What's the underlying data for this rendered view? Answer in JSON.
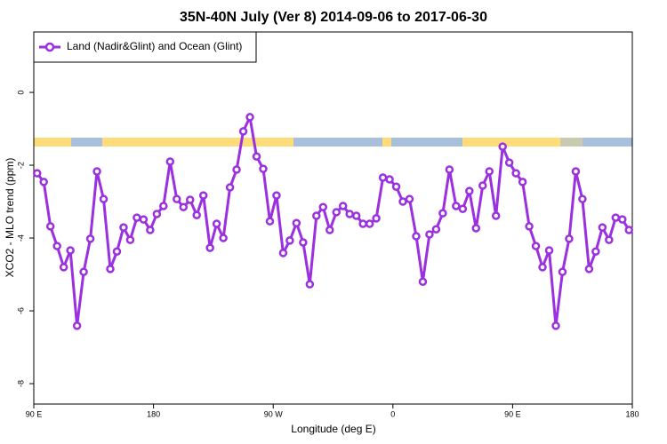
{
  "chart_data": {
    "type": "line",
    "title": "35N-40N July (Ver 8)   2014-09-06 to 2017-06-30",
    "xlabel": "Longitude (deg E)",
    "ylabel": "XCO2 - MLO trend (ppm)",
    "x": [
      92.5,
      97.5,
      102.5,
      107.5,
      112.5,
      117.5,
      122.5,
      127.5,
      132.5,
      137.5,
      142.5,
      147.5,
      152.5,
      157.5,
      162.5,
      167.5,
      172.5,
      177.5,
      182.5,
      187.5,
      192.5,
      197.5,
      202.5,
      207.5,
      212.5,
      217.5,
      222.5,
      227.5,
      232.5,
      237.5,
      242.5,
      247.5,
      252.5,
      257.5,
      262.5,
      267.5,
      272.5,
      277.5,
      282.5,
      287.5,
      292.5,
      297.5,
      302.5,
      307.5,
      312.5,
      317.5,
      322.5,
      327.5,
      332.5,
      337.5,
      342.5,
      347.5,
      352.5,
      357.5,
      362.5,
      367.5,
      372.5,
      377.5,
      382.5,
      387.5,
      392.5,
      397.5,
      402.5,
      407.5,
      412.5,
      417.5,
      422.5,
      427.5,
      432.5,
      437.5,
      442.5,
      447.5,
      452.5,
      457.5,
      462.5,
      467.5,
      472.5,
      477.5,
      482.5,
      487.5,
      492.5,
      497.5,
      502.5,
      507.5,
      512.5,
      517.5,
      522.5,
      527.5,
      532.5,
      537.5
    ],
    "series": [
      {
        "name": "Land (Nadir&Glint) and Ocean (Glint)",
        "color": "#9b30e0",
        "values": [
          -2.22,
          -2.46,
          -3.68,
          -4.22,
          -4.8,
          -4.34,
          -6.41,
          -4.93,
          -4.02,
          -2.17,
          -2.93,
          -4.85,
          -4.37,
          -3.71,
          -4.05,
          -3.44,
          -3.49,
          -3.78,
          -3.34,
          -3.12,
          -1.9,
          -2.93,
          -3.15,
          -2.95,
          -3.37,
          -2.83,
          -4.27,
          -3.61,
          -4.0,
          -2.61,
          -2.12,
          -1.07,
          -0.68,
          -1.76,
          -2.1,
          -3.54,
          -2.83,
          -4.41,
          -4.07,
          -3.59,
          -4.12,
          -5.27,
          -3.39,
          -3.15,
          -3.78,
          -3.29,
          -3.12,
          -3.34,
          -3.39,
          -3.61,
          -3.61,
          -3.46,
          -2.34,
          -2.39,
          -2.59,
          -3.0,
          -2.93,
          -3.95,
          -5.2,
          -3.9,
          -3.76,
          -3.32,
          -2.12,
          -3.12,
          -3.2,
          -2.71,
          -3.73,
          -2.56,
          -2.17,
          -3.39,
          -1.49,
          -1.93,
          -2.22,
          -2.46,
          -3.68,
          -4.22,
          -4.8,
          -4.34,
          -6.41,
          -4.93,
          -4.02,
          -2.17,
          -2.93,
          -4.85,
          -4.37,
          -3.71,
          -4.05,
          -3.44,
          -3.49,
          -3.78
        ]
      }
    ],
    "xlim": [
      90,
      540
    ],
    "xticks": [
      {
        "value": 90,
        "label": "90 E"
      },
      180,
      {
        "value": 270,
        "label": "90 W"
      },
      {
        "value": 360,
        "label": "0"
      },
      {
        "value": 450,
        "label": "90 E"
      },
      {
        "value": 540,
        "label": "180"
      }
    ],
    "ylim": [
      -8.56,
      1.66
    ],
    "yticks": [
      0,
      -2,
      -4,
      -6,
      -8
    ],
    "legend": "top-left"
  }
}
